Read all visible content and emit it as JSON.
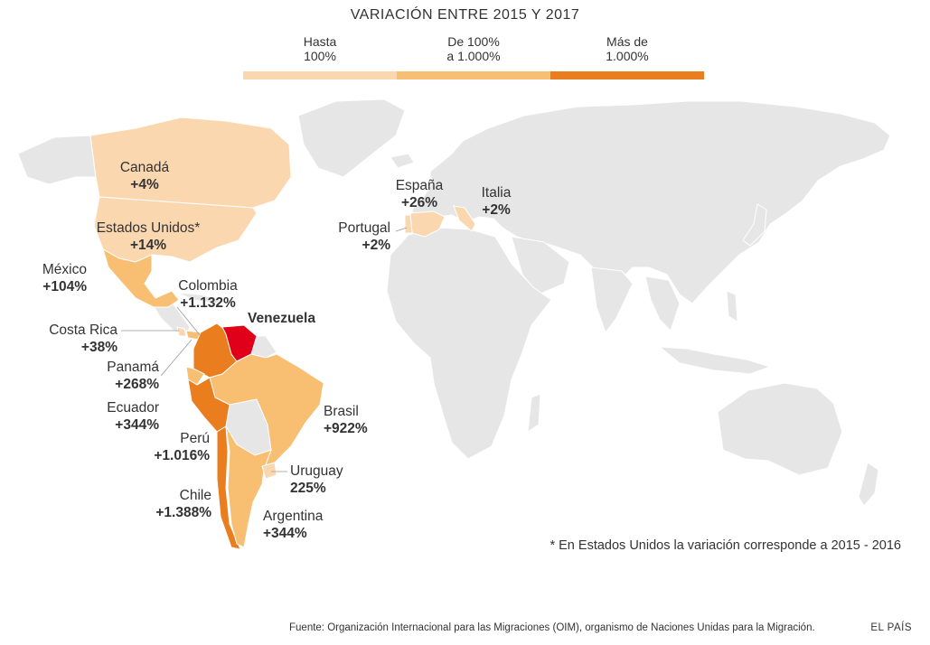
{
  "legend": {
    "title": "VARIACIÓN ENTRE 2015 Y 2017",
    "items": [
      {
        "label": "Hasta\n100%",
        "color": "#fbd7b0"
      },
      {
        "label": "De 100%\na 1.000%",
        "color": "#f8bf72"
      },
      {
        "label": "Más de\n1.000%",
        "color": "#ea7d1e"
      }
    ]
  },
  "colors": {
    "land": "#e6e6e6",
    "low": "#fbd7b0",
    "mid": "#f8bf72",
    "high": "#ea7d1e",
    "venezuela": "#e1001a",
    "border": "#ffffff"
  },
  "countries": [
    {
      "key": "canada",
      "name": "Canadá",
      "value": "+4%"
    },
    {
      "key": "usa",
      "name": "Estados Unidos*",
      "value": "+14%"
    },
    {
      "key": "mexico",
      "name": "México",
      "value": "+104%"
    },
    {
      "key": "colombia",
      "name": "Colombia",
      "value": "+1.132%"
    },
    {
      "key": "costarica",
      "name": "Costa Rica",
      "value": "+38%"
    },
    {
      "key": "panama",
      "name": "Panamá",
      "value": "+268%"
    },
    {
      "key": "ecuador",
      "name": "Ecuador",
      "value": "+344%"
    },
    {
      "key": "peru",
      "name": "Perú",
      "value": "+1.016%"
    },
    {
      "key": "chile",
      "name": "Chile",
      "value": "+1.388%"
    },
    {
      "key": "argentina",
      "name": "Argentina",
      "value": "+344%"
    },
    {
      "key": "uruguay",
      "name": "Uruguay",
      "value": "225%"
    },
    {
      "key": "brasil",
      "name": "Brasil",
      "value": "+922%"
    },
    {
      "key": "espana",
      "name": "España",
      "value": "+26%"
    },
    {
      "key": "italia",
      "name": "Italia",
      "value": "+2%"
    },
    {
      "key": "portugal",
      "name": "Portugal",
      "value": "+2%"
    }
  ],
  "origin": {
    "name": "Venezuela"
  },
  "footnote": "* En Estados Unidos la variación corresponde a 2015 - 2016",
  "source": "Fuente: Organización Internacional para las Migraciones (OIM), organismo de Naciones Unidas para la Migración.",
  "brand": "EL PAÍS"
}
